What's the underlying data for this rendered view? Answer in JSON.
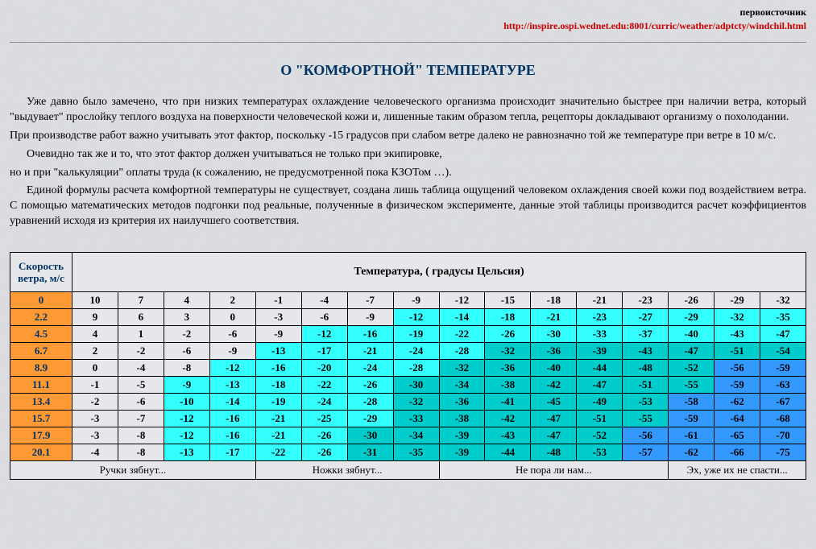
{
  "header": {
    "source_label": "первоисточник",
    "source_url": "http://inspire.ospi.wednet.edu:8001/curric/weather/adptcty/windchil.html"
  },
  "title": "О \"КОМФОРТНОЙ\" ТЕМПЕРАТУРЕ",
  "paragraphs": [
    "Уже давно было замечено, что при низких температурах охлаждение человеческого организма происходит значительно быстрее при наличии ветра, который \"выдувает\" прослойку теплого воздуха на поверхности человеческой кожи и, лишенные таким образом тепла,  рецепторы докладывают организму о похолодании.",
    "При производстве работ важно учитывать этот фактор, поскольку -15 градусов при слабом  ветре далеко не равнозначно той же температуре при ветре в 10 м/с.",
    "Очевидно так же и то, что этот фактор должен учитываться не только при экипировке,",
    "но и при \"калькуляции\" оплаты труда (к сожалению, не предусмотренной пока КЗОТом …).",
    "Единой формулы расчета комфортной температуры не существует, создана лишь таблица ощущений человеком охлаждения своей кожи под воздействием ветра. С помощью математических методов подгонки под реальные, полученные в физическом эксперименте, данные этой таблицы производится расчет  коэффициентов уравнений исходя из критерия их наилучшего соответствия."
  ],
  "table": {
    "corner_label": "Скорость ветра, м/с",
    "header_label": "Температура, ( градусы Цельсия)",
    "temp_cols": [
      "10",
      "7",
      "4",
      "2",
      "-1",
      "-4",
      "-7",
      "-9",
      "-12",
      "-15",
      "-18",
      "-21",
      "-23",
      "-26",
      "-29",
      "-32"
    ],
    "speeds": [
      "0",
      "2.2",
      "4.5",
      "6.7",
      "8.9",
      "11.1",
      "13.4",
      "15.7",
      "17.9",
      "20.1"
    ],
    "rows": [
      [
        "9",
        "6",
        "3",
        "0",
        "-3",
        "-6",
        "-9",
        "-12",
        "-14",
        "-18",
        "-21",
        "-23",
        "-27",
        "-29",
        "-32",
        "-35"
      ],
      [
        "4",
        "1",
        "-2",
        "-6",
        "-9",
        "-12",
        "-16",
        "-19",
        "-22",
        "-26",
        "-30",
        "-33",
        "-37",
        "-40",
        "-43",
        "-47"
      ],
      [
        "2",
        "-2",
        "-6",
        "-9",
        "-13",
        "-17",
        "-21",
        "-24",
        "-28",
        "-32",
        "-36",
        "-39",
        "-43",
        "-47",
        "-51",
        "-54"
      ],
      [
        "0",
        "-4",
        "-8",
        "-12",
        "-16",
        "-20",
        "-24",
        "-28",
        "-32",
        "-36",
        "-40",
        "-44",
        "-48",
        "-52",
        "-56",
        "-59"
      ],
      [
        "-1",
        "-5",
        "-9",
        "-13",
        "-18",
        "-22",
        "-26",
        "-30",
        "-34",
        "-38",
        "-42",
        "-47",
        "-51",
        "-55",
        "-59",
        "-63"
      ],
      [
        "-2",
        "-6",
        "-10",
        "-14",
        "-19",
        "-24",
        "-28",
        "-32",
        "-36",
        "-41",
        "-45",
        "-49",
        "-53",
        "-58",
        "-62",
        "-67"
      ],
      [
        "-3",
        "-7",
        "-12",
        "-16",
        "-21",
        "-25",
        "-29",
        "-33",
        "-38",
        "-42",
        "-47",
        "-51",
        "-55",
        "-59",
        "-64",
        "-68"
      ],
      [
        "-3",
        "-8",
        "-12",
        "-16",
        "-21",
        "-26",
        "-30",
        "-34",
        "-39",
        "-43",
        "-47",
        "-52",
        "-56",
        "-61",
        "-65",
        "-70"
      ],
      [
        "-4",
        "-8",
        "-13",
        "-17",
        "-22",
        "-26",
        "-31",
        "-35",
        "-39",
        "-44",
        "-48",
        "-53",
        "-57",
        "-62",
        "-66",
        "-75"
      ]
    ],
    "footer": [
      {
        "span": 4,
        "label": "Ручки зябнут..."
      },
      {
        "span": 4,
        "label": "Ножки зябнут..."
      },
      {
        "span": 5,
        "label": "Не пора ли нам..."
      },
      {
        "span": 4,
        "label": "Эх, уже их не спасти..."
      }
    ],
    "colors": {
      "speed_bg": "#ff9933",
      "default_bg": "#e6e7ea",
      "zone_cyan": "#33ffff",
      "zone_teal": "#00cccc",
      "zone_blue": "#3399ff",
      "header_bg": "#e6e7ea",
      "footer_bg": "#e6e7ea"
    },
    "cell_zones": [
      [
        "d",
        "d",
        "d",
        "d",
        "d",
        "d",
        "d",
        "c",
        "c",
        "c",
        "c",
        "c",
        "c",
        "c",
        "c",
        "c"
      ],
      [
        "d",
        "d",
        "d",
        "d",
        "d",
        "c",
        "c",
        "c",
        "c",
        "c",
        "c",
        "c",
        "c",
        "c",
        "c",
        "c"
      ],
      [
        "d",
        "d",
        "d",
        "d",
        "c",
        "c",
        "c",
        "c",
        "c",
        "t",
        "t",
        "t",
        "t",
        "t",
        "t",
        "t"
      ],
      [
        "d",
        "d",
        "d",
        "c",
        "c",
        "c",
        "c",
        "c",
        "t",
        "t",
        "t",
        "t",
        "t",
        "t",
        "b",
        "b"
      ],
      [
        "d",
        "d",
        "c",
        "c",
        "c",
        "c",
        "c",
        "t",
        "t",
        "t",
        "t",
        "t",
        "t",
        "t",
        "b",
        "b"
      ],
      [
        "d",
        "d",
        "c",
        "c",
        "c",
        "c",
        "c",
        "t",
        "t",
        "t",
        "t",
        "t",
        "t",
        "b",
        "b",
        "b"
      ],
      [
        "d",
        "d",
        "c",
        "c",
        "c",
        "c",
        "c",
        "t",
        "t",
        "t",
        "t",
        "t",
        "t",
        "b",
        "b",
        "b"
      ],
      [
        "d",
        "d",
        "c",
        "c",
        "c",
        "c",
        "t",
        "t",
        "t",
        "t",
        "t",
        "t",
        "b",
        "b",
        "b",
        "b"
      ],
      [
        "d",
        "d",
        "c",
        "c",
        "c",
        "c",
        "t",
        "t",
        "t",
        "t",
        "t",
        "t",
        "b",
        "b",
        "b",
        "b"
      ]
    ]
  }
}
